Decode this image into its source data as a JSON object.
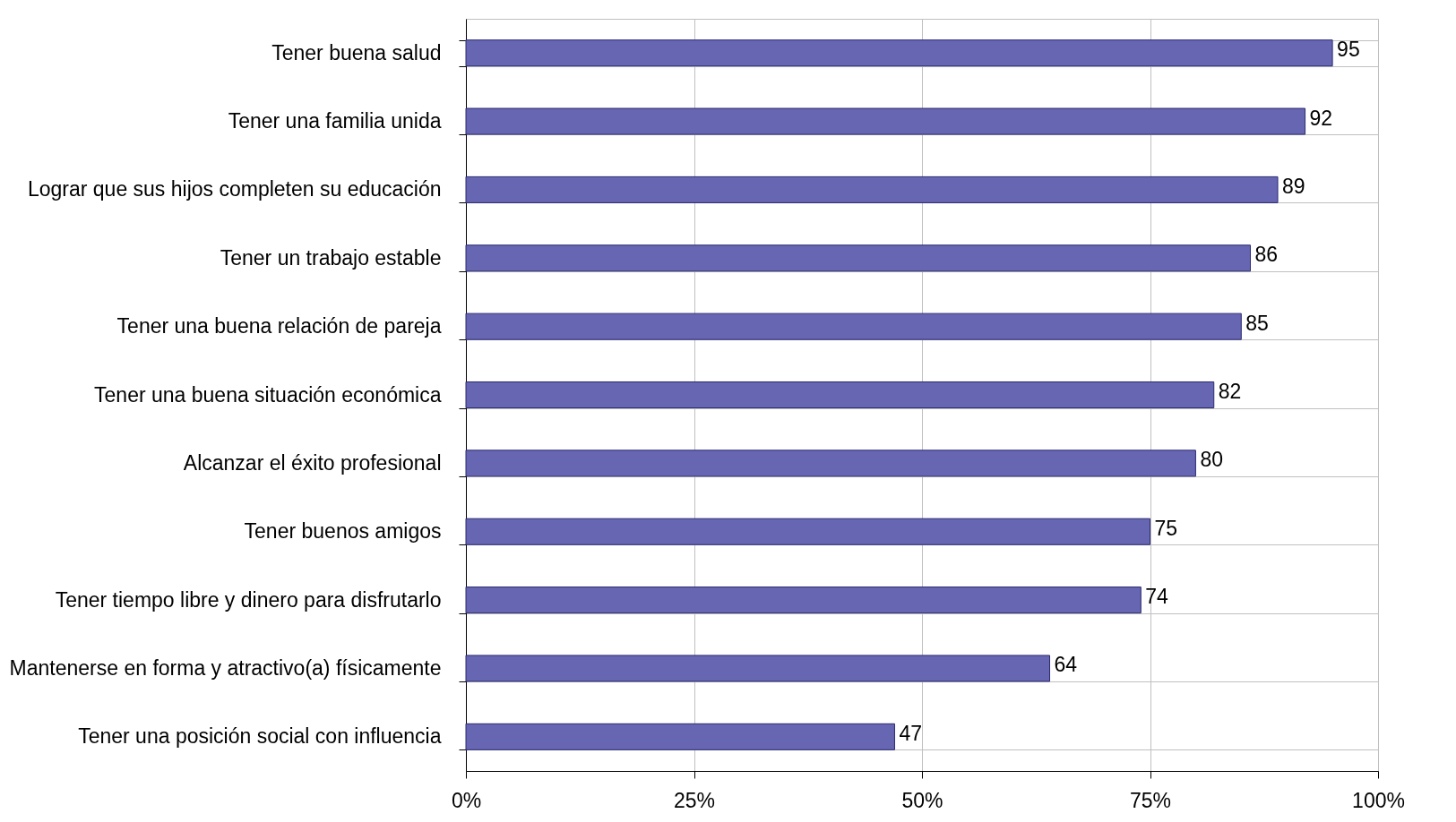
{
  "chart_data": {
    "type": "bar",
    "orientation": "horizontal",
    "categories": [
      "Tener buena salud",
      "Tener una familia unida",
      "Lograr que sus hijos completen su educación",
      "Tener un trabajo estable",
      "Tener una buena relación de pareja",
      "Tener una buena situación económica",
      "Alcanzar el éxito profesional",
      "Tener buenos amigos",
      "Tener tiempo libre y dinero para disfrutarlo",
      "Mantenerse en forma y atractivo(a) físicamente",
      "Tener una posición social con influencia"
    ],
    "values": [
      95,
      92,
      89,
      86,
      85,
      82,
      80,
      75,
      74,
      64,
      47
    ],
    "color": "#6666b3",
    "xlim": [
      0,
      100
    ],
    "xticks": [
      {
        "value": 0,
        "label": "0%"
      },
      {
        "value": 25,
        "label": "25%"
      },
      {
        "value": 50,
        "label": "50%"
      },
      {
        "value": 75,
        "label": "75%"
      },
      {
        "value": 100,
        "label": "100%"
      }
    ],
    "data_labels": true,
    "grid": true
  }
}
